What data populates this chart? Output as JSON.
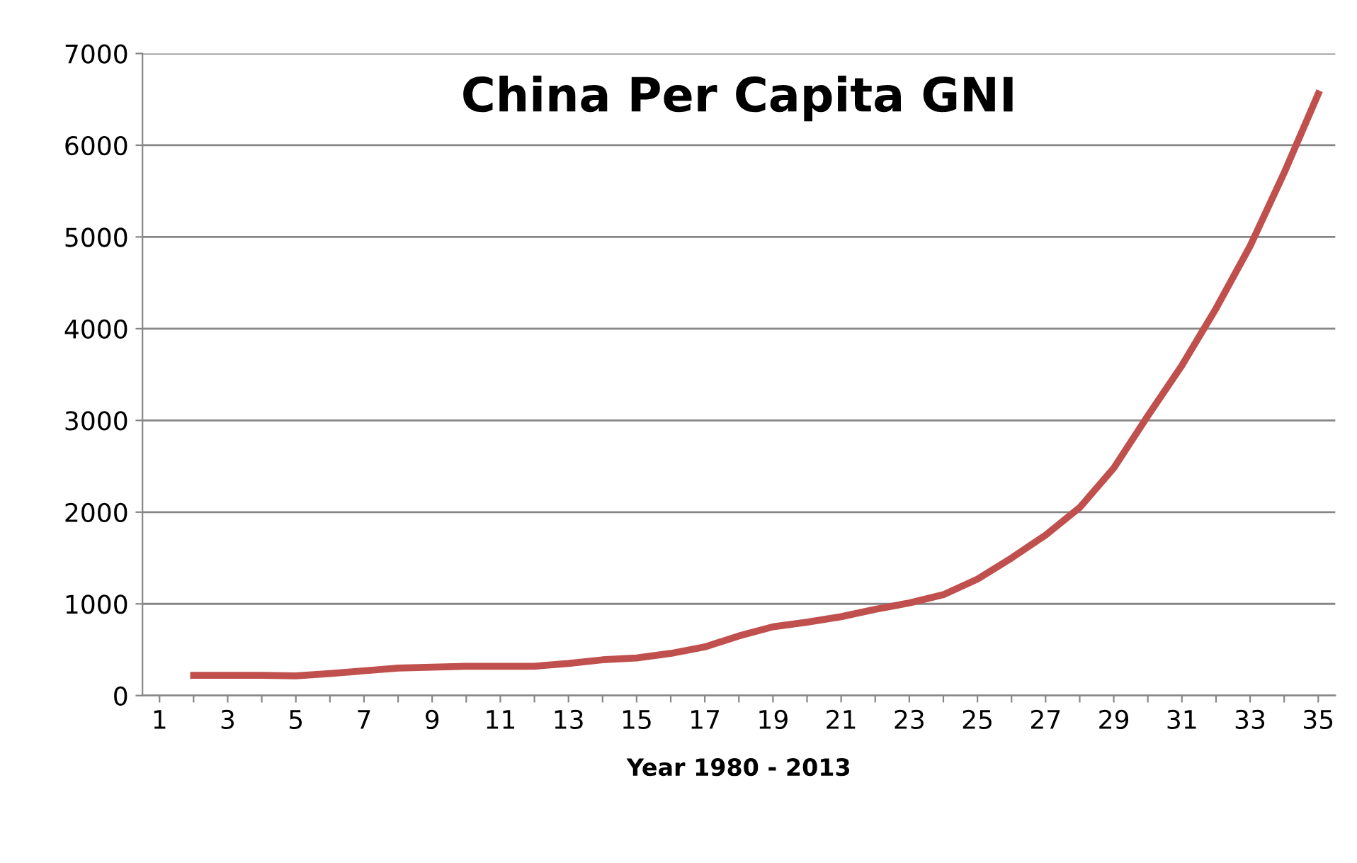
{
  "chart_data": {
    "type": "line",
    "title": "China Per Capita GNI",
    "xlabel": "Year 1980 - 2013",
    "categories": [
      "1",
      null,
      "3",
      null,
      "5",
      null,
      "7",
      null,
      "9",
      null,
      "11",
      null,
      "13",
      null,
      "15",
      null,
      "17",
      null,
      "19",
      null,
      "21",
      null,
      "23",
      null,
      "25",
      null,
      "27",
      null,
      "29",
      null,
      "31",
      null,
      "33",
      null,
      "35"
    ],
    "series": [
      {
        "color": "#c0504d",
        "values": [
          null,
          220,
          220,
          220,
          215,
          240,
          270,
          300,
          310,
          320,
          320,
          320,
          350,
          390,
          410,
          460,
          530,
          650,
          750,
          800,
          860,
          940,
          1010,
          1100,
          1270,
          1500,
          1750,
          2050,
          2480,
          3050,
          3600,
          4220,
          4900,
          5700,
          6560
        ]
      }
    ],
    "ylim": [
      0,
      7000
    ],
    "yticks": [
      0,
      1000,
      2000,
      3000,
      4000,
      5000,
      6000,
      7000
    ],
    "grid": "y",
    "legend": false,
    "marker": "none",
    "line_style": "solid"
  }
}
